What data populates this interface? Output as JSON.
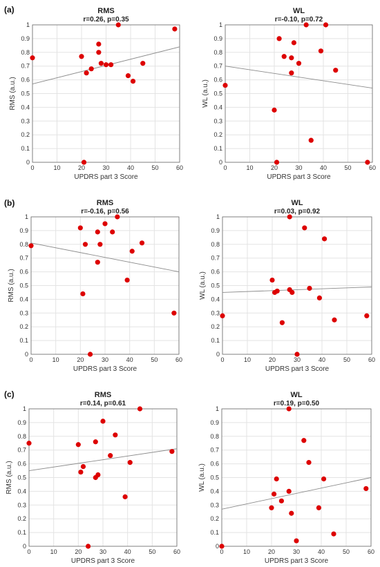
{
  "panel_labels": [
    "(a)",
    "(b)",
    "(c)"
  ],
  "chart_data": [
    {
      "type": "scatter",
      "title": "RMS",
      "subtitle": "r=0.26, p=0.35",
      "xlabel": "UPDRS part 3 Score",
      "ylabel": "RMS (a.u.)",
      "xlim": [
        0,
        60
      ],
      "ylim": [
        0,
        1
      ],
      "xticks": [
        0,
        10,
        20,
        30,
        40,
        50,
        60
      ],
      "yticks": [
        0,
        0.1,
        0.2,
        0.3,
        0.4,
        0.5,
        0.6,
        0.7,
        0.8,
        0.9,
        1
      ],
      "point_color": "#dd0000",
      "x": [
        0,
        20,
        21,
        22,
        24,
        27,
        27,
        28,
        30,
        32,
        35,
        39,
        41,
        45,
        58
      ],
      "y": [
        0.76,
        0.77,
        0,
        0.65,
        0.68,
        0.8,
        0.86,
        0.72,
        0.71,
        0.71,
        1.0,
        0.63,
        0.59,
        0.72,
        0.97
      ],
      "fit": [
        [
          0,
          0.57
        ],
        [
          60,
          0.84
        ]
      ]
    },
    {
      "type": "scatter",
      "title": "WL",
      "subtitle": "r=-0.10, p=0.72",
      "xlabel": "UPDRS part 3 Score",
      "ylabel": "WL (a.u.)",
      "xlim": [
        0,
        60
      ],
      "ylim": [
        0,
        1
      ],
      "xticks": [
        0,
        10,
        20,
        30,
        40,
        50,
        60
      ],
      "yticks": [
        0,
        0.1,
        0.2,
        0.3,
        0.4,
        0.5,
        0.6,
        0.7,
        0.8,
        0.9,
        1
      ],
      "point_color": "#dd0000",
      "x": [
        0,
        20,
        21,
        22,
        24,
        27,
        27,
        28,
        30,
        33,
        35,
        39,
        41,
        45,
        58
      ],
      "y": [
        0.56,
        0.38,
        0,
        0.9,
        0.77,
        0.76,
        0.65,
        0.87,
        0.72,
        1.0,
        0.16,
        0.81,
        1.0,
        0.67,
        0
      ],
      "fit": [
        [
          0,
          0.7
        ],
        [
          60,
          0.54
        ]
      ]
    },
    {
      "type": "scatter",
      "title": "RMS",
      "subtitle": "r=-0.16, p=0.56",
      "xlabel": "UPDRS part 3 Score",
      "ylabel": "RMS (a.u.)",
      "xlim": [
        0,
        60
      ],
      "ylim": [
        0,
        1
      ],
      "xticks": [
        0,
        10,
        20,
        30,
        40,
        50,
        60
      ],
      "yticks": [
        0,
        0.1,
        0.2,
        0.3,
        0.4,
        0.5,
        0.6,
        0.7,
        0.8,
        0.9,
        1
      ],
      "point_color": "#dd0000",
      "x": [
        0,
        20,
        21,
        22,
        24,
        27,
        27,
        28,
        30,
        33,
        35,
        39,
        41,
        45,
        58
      ],
      "y": [
        0.79,
        0.92,
        0.44,
        0.8,
        0,
        0.89,
        0.67,
        0.8,
        0.95,
        0.89,
        1.0,
        0.54,
        0.75,
        0.81,
        0.3
      ],
      "fit": [
        [
          0,
          0.81
        ],
        [
          60,
          0.6
        ]
      ]
    },
    {
      "type": "scatter",
      "title": "WL",
      "subtitle": "r=0.03, p=0.92",
      "xlabel": "UPDRS part 3 Score",
      "ylabel": "WL (a.u.)",
      "xlim": [
        0,
        60
      ],
      "ylim": [
        0,
        1
      ],
      "xticks": [
        0,
        10,
        20,
        30,
        40,
        50,
        60
      ],
      "yticks": [
        0,
        0.1,
        0.2,
        0.3,
        0.4,
        0.5,
        0.6,
        0.7,
        0.8,
        0.9,
        1
      ],
      "point_color": "#dd0000",
      "x": [
        0,
        20,
        21,
        22,
        24,
        27,
        27,
        28,
        30,
        33,
        35,
        39,
        41,
        45,
        58
      ],
      "y": [
        0.28,
        0.54,
        0.45,
        0.46,
        0.23,
        1.0,
        0.47,
        0.45,
        0,
        0.92,
        0.48,
        0.41,
        0.84,
        0.25,
        0.28
      ],
      "fit": [
        [
          0,
          0.45
        ],
        [
          60,
          0.49
        ]
      ]
    },
    {
      "type": "scatter",
      "title": "RMS",
      "subtitle": "r=0.14, p=0.61",
      "xlabel": "UPDRS part 3 Score",
      "ylabel": "RMS (a.u.)",
      "xlim": [
        0,
        60
      ],
      "ylim": [
        0,
        1
      ],
      "xticks": [
        0,
        10,
        20,
        30,
        40,
        50,
        60
      ],
      "yticks": [
        0,
        0.1,
        0.2,
        0.3,
        0.4,
        0.5,
        0.6,
        0.7,
        0.8,
        0.9,
        1
      ],
      "point_color": "#dd0000",
      "x": [
        0,
        20,
        21,
        22,
        24,
        27,
        27,
        28,
        30,
        33,
        35,
        39,
        41,
        45,
        58
      ],
      "y": [
        0.75,
        0.74,
        0.54,
        0.58,
        0,
        0.76,
        0.5,
        0.52,
        0.91,
        0.66,
        0.81,
        0.36,
        0.61,
        1.0,
        0.69
      ],
      "fit": [
        [
          0,
          0.55
        ],
        [
          60,
          0.71
        ]
      ]
    },
    {
      "type": "scatter",
      "title": "WL",
      "subtitle": "r=0.19, p=0.50",
      "xlabel": "UPDRS part 3 Score",
      "ylabel": "WL (a.u.)",
      "xlim": [
        0,
        60
      ],
      "ylim": [
        0,
        1
      ],
      "xticks": [
        0,
        10,
        20,
        30,
        40,
        50,
        60
      ],
      "yticks": [
        0,
        0.1,
        0.2,
        0.3,
        0.4,
        0.5,
        0.6,
        0.7,
        0.8,
        0.9,
        1
      ],
      "point_color": "#dd0000",
      "x": [
        0,
        20,
        21,
        22,
        24,
        27,
        27,
        28,
        30,
        33,
        35,
        39,
        41,
        45,
        58
      ],
      "y": [
        0,
        0.28,
        0.38,
        0.49,
        0.33,
        1.0,
        0.4,
        0.24,
        0.04,
        0.77,
        0.61,
        0.28,
        0.49,
        0.09,
        0.42
      ],
      "fit": [
        [
          0,
          0.27
        ],
        [
          60,
          0.5
        ]
      ]
    }
  ]
}
